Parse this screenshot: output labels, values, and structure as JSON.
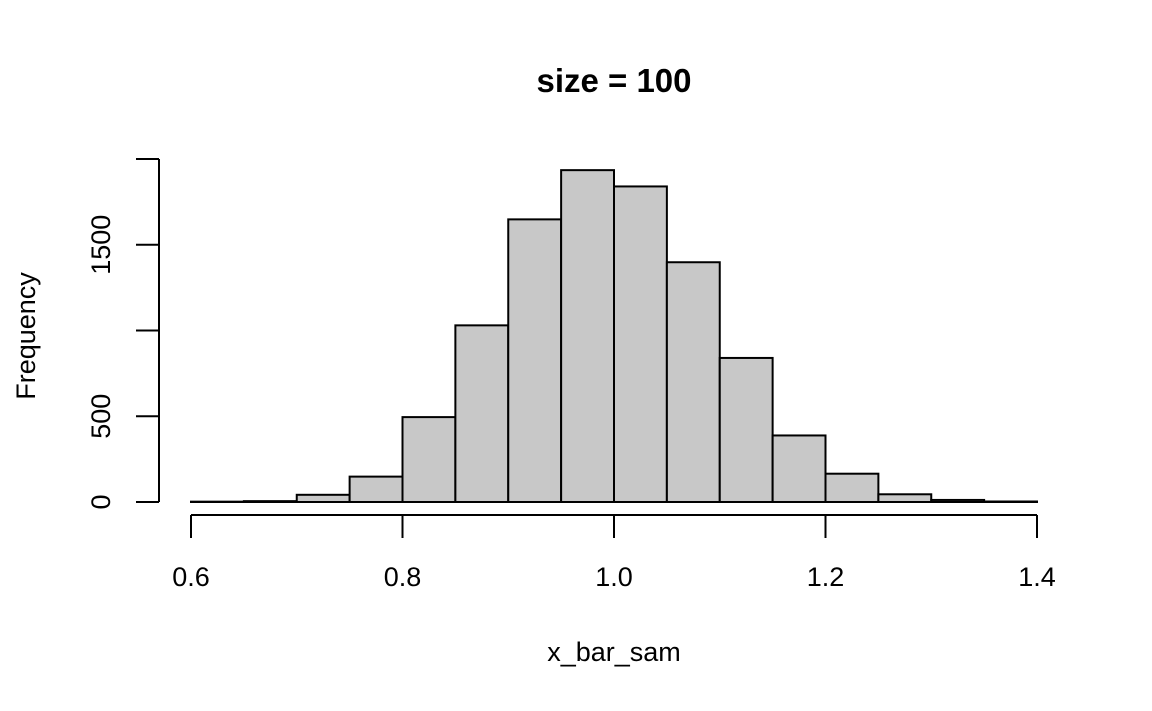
{
  "chart_data": {
    "type": "bar",
    "title": "size = 100",
    "xlabel": "x_bar_sam",
    "ylabel": "Frequency",
    "xlim": [
      0.6,
      1.4
    ],
    "ylim": [
      0,
      2000
    ],
    "xticks": [
      0.6,
      0.8,
      1.0,
      1.2,
      1.4
    ],
    "xtick_labels": [
      "0.6",
      "0.8",
      "1.0",
      "1.2",
      "1.4"
    ],
    "yticks": [
      0,
      500,
      1000,
      1500,
      2000
    ],
    "ytick_labels": [
      "0",
      "500",
      "",
      "1500",
      ""
    ],
    "bin_edges": [
      0.6,
      0.65,
      0.7,
      0.75,
      0.8,
      0.85,
      0.9,
      0.95,
      1.0,
      1.05,
      1.1,
      1.15,
      1.2,
      1.25,
      1.3,
      1.35,
      1.4
    ],
    "values": [
      2,
      5,
      42,
      148,
      495,
      1030,
      1648,
      1935,
      1840,
      1398,
      840,
      388,
      165,
      45,
      12,
      3
    ],
    "bar_color": "#c8c8c8",
    "grid": false,
    "legend": "none"
  }
}
